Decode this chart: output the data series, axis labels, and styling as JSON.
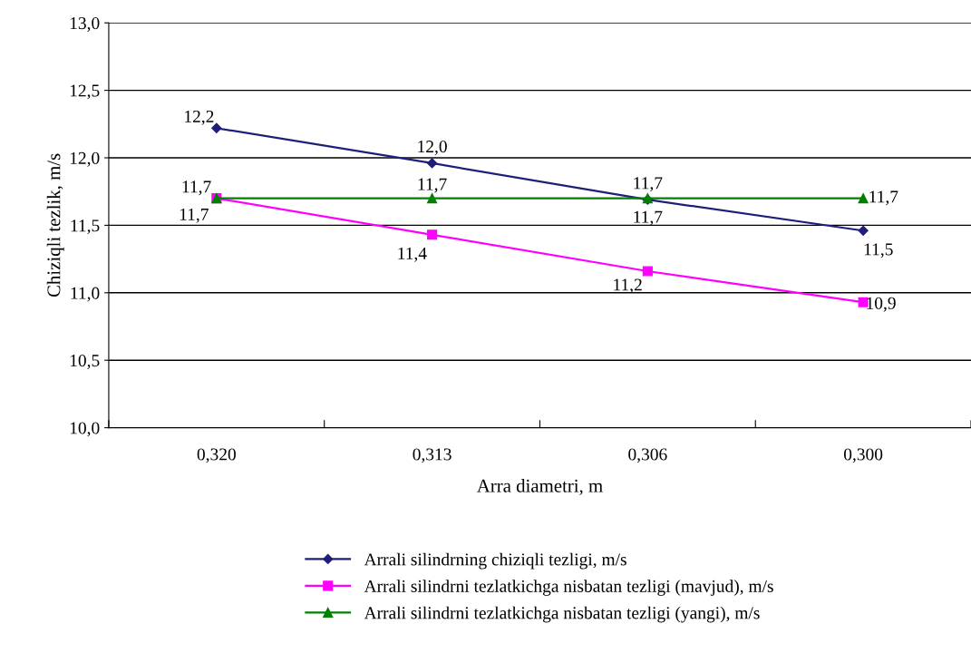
{
  "chart_data": {
    "type": "line",
    "xlabel": "Arra diametri, m",
    "ylabel": "Chiziqli tezlik, m/s",
    "categories": [
      "0,320",
      "0,313",
      "0,306",
      "0,300"
    ],
    "series": [
      {
        "name": "Arrali silindrning chiziqli tezligi, m/s",
        "color": "#1f1f7a",
        "marker": "diamond",
        "values": [
          12.22,
          11.96,
          11.69,
          11.46
        ],
        "value_labels": [
          "12,2",
          "12,0",
          "11,7",
          "11,5"
        ]
      },
      {
        "name": "Arrali silindrni tezlatkichga nisbatan tezligi (mavjud), m/s",
        "color": "#ff00ff",
        "marker": "square",
        "values": [
          11.7,
          11.43,
          11.16,
          10.93
        ],
        "value_labels": [
          "11,7",
          "11,4",
          "11,2",
          "10,9"
        ]
      },
      {
        "name": "Arrali silindrni tezlatkichga nisbatan tezligi (yangi), m/s",
        "color": "#008000",
        "marker": "triangle",
        "values": [
          11.7,
          11.7,
          11.7,
          11.7
        ],
        "value_labels": [
          "11,7",
          "11,7",
          "11,7",
          "11,7"
        ]
      }
    ],
    "ylim": [
      10.0,
      13.0
    ],
    "yticks": [
      {
        "value": 10.0,
        "label": "10,0"
      },
      {
        "value": 10.5,
        "label": "10,5"
      },
      {
        "value": 11.0,
        "label": "11,0"
      },
      {
        "value": 11.5,
        "label": "11,5"
      },
      {
        "value": 12.0,
        "label": "12,0"
      },
      {
        "value": 12.5,
        "label": "12,5"
      },
      {
        "value": 13.0,
        "label": "13,0"
      }
    ],
    "grid": "y",
    "legend": "bottom",
    "line_style": "solid"
  }
}
